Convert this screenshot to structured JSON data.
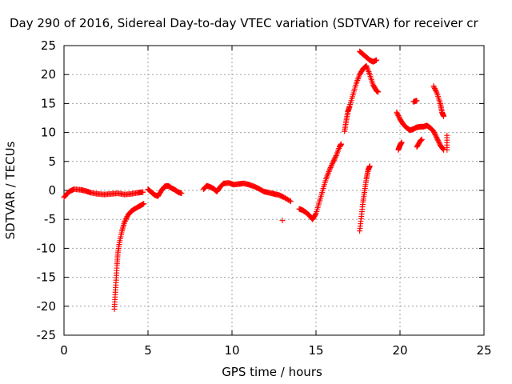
{
  "chart_data": {
    "type": "scatter",
    "title": "Day 290 of 2016, Sidereal Day-to-day VTEC variation (SDTVAR) for receiver cr",
    "xlabel": "GPS time / hours",
    "ylabel": "SDTVAR / TECUs",
    "xlim": [
      0,
      25
    ],
    "ylim": [
      -25,
      25
    ],
    "x_ticks": [
      "0",
      "5",
      "10",
      "15",
      "20",
      "25"
    ],
    "y_ticks": [
      "-25",
      "-20",
      "-15",
      "-10",
      "-5",
      "0",
      "5",
      "10",
      "15",
      "20",
      "25"
    ],
    "grid": true,
    "marker": "+",
    "color": "#ff0000",
    "segments": [
      [
        [
          0.0,
          -1.2
        ],
        [
          0.3,
          -0.2
        ],
        [
          0.6,
          0.2
        ],
        [
          1.0,
          0.1
        ],
        [
          1.3,
          -0.1
        ],
        [
          1.6,
          -0.4
        ],
        [
          2.0,
          -0.6
        ],
        [
          2.4,
          -0.7
        ],
        [
          2.8,
          -0.6
        ],
        [
          3.2,
          -0.5
        ],
        [
          3.6,
          -0.7
        ],
        [
          4.0,
          -0.6
        ],
        [
          4.4,
          -0.4
        ],
        [
          4.7,
          -0.3
        ]
      ],
      [
        [
          3.0,
          -20.5
        ],
        [
          3.05,
          -18.0
        ],
        [
          3.1,
          -15.5
        ],
        [
          3.15,
          -13.0
        ],
        [
          3.2,
          -11.0
        ],
        [
          3.3,
          -9.0
        ],
        [
          3.45,
          -7.0
        ],
        [
          3.6,
          -5.5
        ],
        [
          3.8,
          -4.3
        ],
        [
          4.0,
          -3.6
        ],
        [
          4.2,
          -3.2
        ],
        [
          4.5,
          -2.7
        ],
        [
          4.75,
          -2.3
        ]
      ],
      [
        [
          5.0,
          0.2
        ],
        [
          5.2,
          -0.3
        ],
        [
          5.4,
          -0.8
        ],
        [
          5.6,
          -1.0
        ],
        [
          5.8,
          0.0
        ],
        [
          6.0,
          0.7
        ],
        [
          6.2,
          0.8
        ],
        [
          6.4,
          0.4
        ],
        [
          6.6,
          0.1
        ],
        [
          6.8,
          -0.3
        ],
        [
          7.0,
          -0.5
        ]
      ],
      [
        [
          8.3,
          0.2
        ],
        [
          8.5,
          0.8
        ],
        [
          8.7,
          0.6
        ],
        [
          8.9,
          0.3
        ],
        [
          9.1,
          -0.2
        ],
        [
          9.3,
          0.6
        ],
        [
          9.5,
          1.2
        ],
        [
          9.8,
          1.3
        ],
        [
          10.1,
          1.0
        ],
        [
          10.4,
          1.1
        ],
        [
          10.7,
          1.2
        ],
        [
          11.0,
          1.0
        ],
        [
          11.3,
          0.7
        ],
        [
          11.6,
          0.3
        ],
        [
          11.9,
          -0.2
        ],
        [
          12.2,
          -0.4
        ],
        [
          12.5,
          -0.6
        ],
        [
          12.8,
          -0.8
        ],
        [
          13.1,
          -1.2
        ],
        [
          13.5,
          -1.9
        ]
      ],
      [
        [
          13.0,
          -5.2
        ]
      ],
      [
        [
          14.0,
          -3.2
        ],
        [
          14.2,
          -3.4
        ],
        [
          14.4,
          -3.8
        ],
        [
          14.6,
          -4.3
        ],
        [
          14.8,
          -5.0
        ],
        [
          15.0,
          -4.0
        ],
        [
          15.2,
          -2.0
        ],
        [
          15.4,
          0.0
        ],
        [
          15.6,
          2.0
        ],
        [
          15.8,
          3.5
        ],
        [
          16.0,
          4.8
        ],
        [
          16.2,
          6.0
        ],
        [
          16.4,
          7.5
        ],
        [
          16.5,
          8.0
        ]
      ],
      [
        [
          16.7,
          10.2
        ],
        [
          16.8,
          12.0
        ],
        [
          16.9,
          13.6
        ],
        [
          17.0,
          14.5
        ],
        [
          17.2,
          16.5
        ],
        [
          17.4,
          18.5
        ],
        [
          17.6,
          20.0
        ],
        [
          17.8,
          21.0
        ],
        [
          18.0,
          21.5
        ],
        [
          18.2,
          20.0
        ],
        [
          18.4,
          18.2
        ],
        [
          18.6,
          17.2
        ],
        [
          18.7,
          17.0
        ]
      ],
      [
        [
          17.6,
          24.0
        ],
        [
          17.8,
          23.5
        ],
        [
          18.0,
          23.0
        ],
        [
          18.2,
          22.5
        ],
        [
          18.4,
          22.2
        ],
        [
          18.6,
          22.5
        ]
      ],
      [
        [
          17.6,
          -7.0
        ],
        [
          17.7,
          -4.5
        ],
        [
          17.8,
          -2.0
        ],
        [
          17.9,
          0.0
        ],
        [
          18.0,
          2.0
        ],
        [
          18.1,
          3.5
        ],
        [
          18.2,
          4.2
        ]
      ],
      [
        [
          19.8,
          13.5
        ],
        [
          20.0,
          12.3
        ],
        [
          20.2,
          11.4
        ],
        [
          20.4,
          10.8
        ],
        [
          20.6,
          10.4
        ],
        [
          20.8,
          10.6
        ],
        [
          21.0,
          10.9
        ],
        [
          21.2,
          11.0
        ],
        [
          21.4,
          11.0
        ],
        [
          21.6,
          11.2
        ],
        [
          21.8,
          10.8
        ],
        [
          22.0,
          10.2
        ],
        [
          22.2,
          9.0
        ],
        [
          22.4,
          7.8
        ],
        [
          22.6,
          7.0
        ]
      ],
      [
        [
          19.9,
          7.0
        ],
        [
          20.0,
          7.8
        ],
        [
          20.1,
          8.3
        ]
      ],
      [
        [
          20.8,
          15.3
        ],
        [
          21.0,
          15.5
        ]
      ],
      [
        [
          21.0,
          7.5
        ],
        [
          21.2,
          8.5
        ],
        [
          21.3,
          8.8
        ]
      ],
      [
        [
          22.0,
          18.0
        ],
        [
          22.2,
          16.8
        ],
        [
          22.4,
          15.0
        ],
        [
          22.5,
          13.5
        ],
        [
          22.6,
          12.8
        ]
      ],
      [
        [
          22.8,
          7.0
        ],
        [
          22.8,
          9.5
        ]
      ]
    ]
  }
}
